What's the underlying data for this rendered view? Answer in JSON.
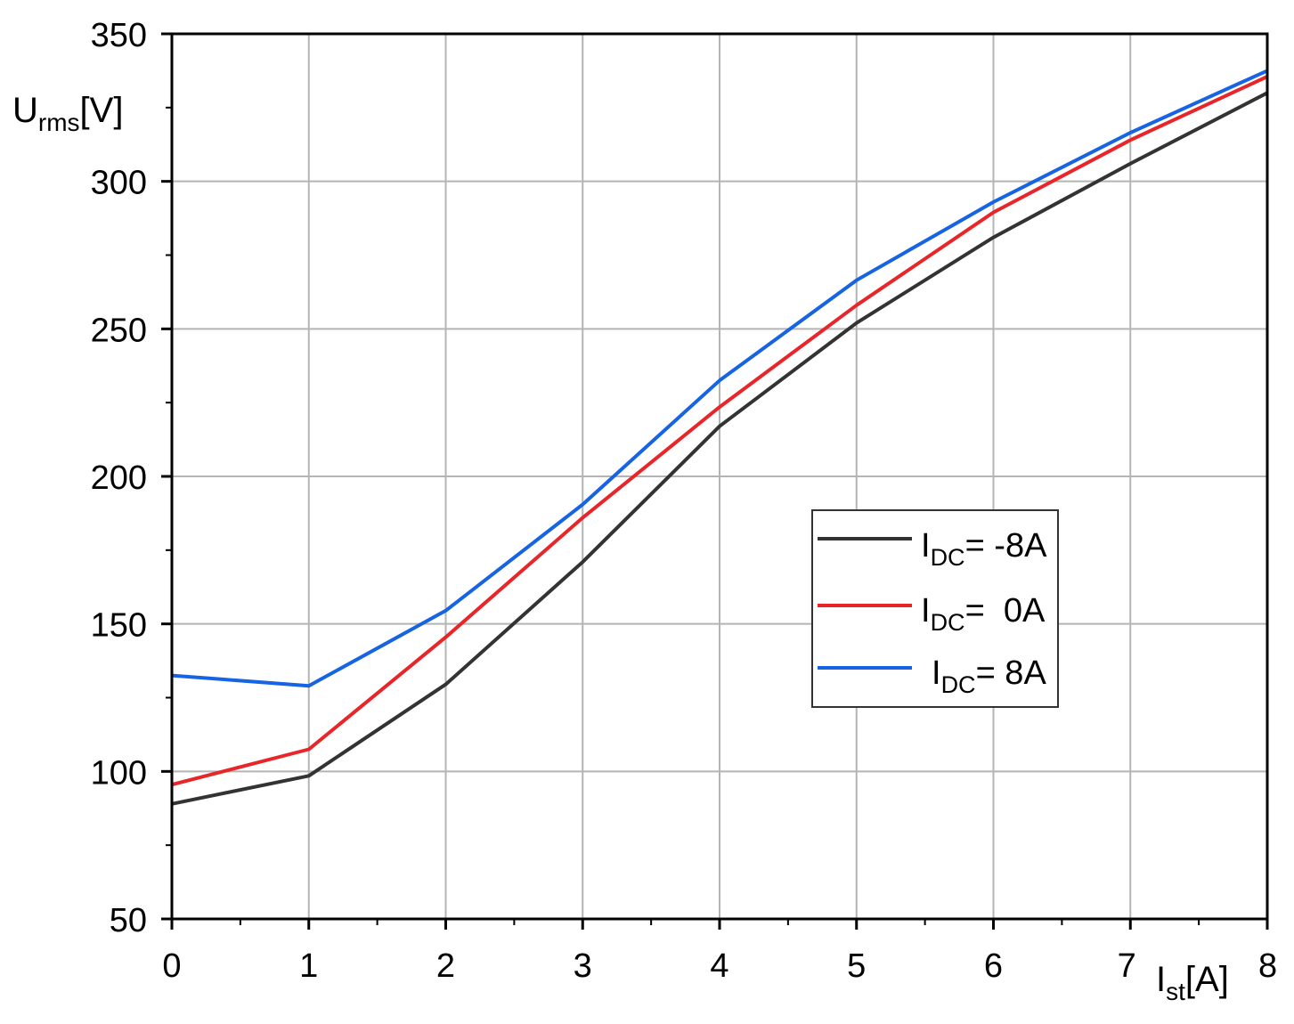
{
  "chart_data": {
    "type": "line",
    "xlabel": {
      "main": "I",
      "sub": "st",
      "unit": "[A]"
    },
    "ylabel": {
      "main": "U",
      "sub": "rms",
      "unit": "[V]"
    },
    "xlim": [
      0,
      8
    ],
    "ylim": [
      50,
      350
    ],
    "x_ticks": [
      "0",
      "1",
      "2",
      "3",
      "4",
      "5",
      "6",
      "7",
      "8"
    ],
    "y_ticks": [
      "50",
      "100",
      "150",
      "200",
      "250",
      "300",
      "350"
    ],
    "grid": true,
    "legend_position": "center-right",
    "x": [
      0,
      1,
      2,
      3,
      4,
      5,
      6,
      7,
      8
    ],
    "series": [
      {
        "label_main": "I",
        "label_sub": "DC",
        "label_rest": "= -8A",
        "color": "#333333",
        "values": [
          89,
          98.5,
          129.5,
          171,
          217,
          252,
          281,
          306,
          330
        ]
      },
      {
        "label_main": "I",
        "label_sub": "DC",
        "label_rest": "=  0A",
        "color": "#e8262a",
        "values": [
          95.5,
          107.5,
          145.5,
          186,
          223.5,
          258,
          289.5,
          314,
          335.5
        ]
      },
      {
        "label_main": "I",
        "label_sub": "DC",
        "label_rest": "= 8A",
        "color": "#1664e2",
        "values": [
          132.5,
          129,
          154.5,
          190.5,
          232.5,
          266.5,
          293,
          316.5,
          337.5
        ]
      }
    ]
  }
}
